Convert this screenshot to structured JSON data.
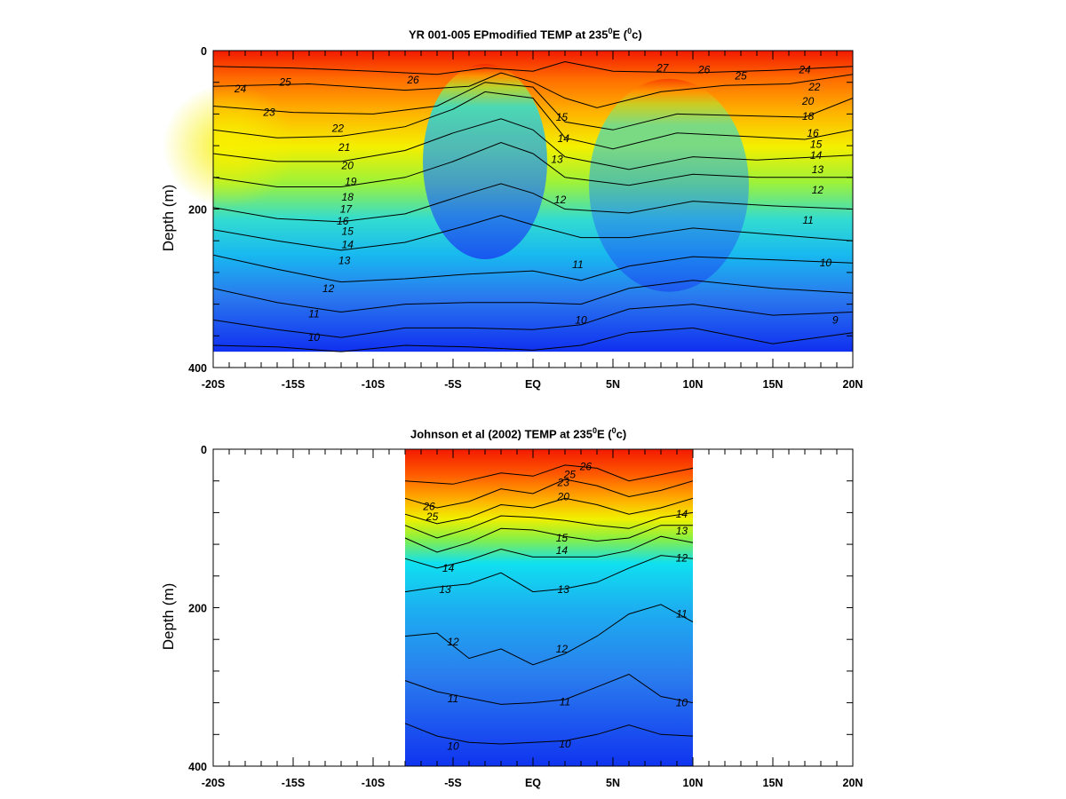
{
  "chart_data": [
    {
      "type": "heatmap",
      "title_parts": {
        "pre": "YR 001-005 EPmodified TEMP at 235",
        "sup1": "0",
        "mid": "E (",
        "sup2": "0",
        "post": "c)"
      },
      "ylabel": "Depth (m)",
      "x_ticks": [
        "-20S",
        "-15S",
        "-10S",
        "-5S",
        "EQ",
        "5N",
        "10N",
        "15N",
        "20N"
      ],
      "x_tick_values": [
        -20,
        -15,
        -10,
        -5,
        0,
        5,
        10,
        15,
        20
      ],
      "y_ticks": [
        "0",
        "200",
        "400"
      ],
      "y_tick_values": [
        0,
        200,
        400
      ],
      "xlim": [
        -20,
        20
      ],
      "ylim": [
        0,
        400
      ],
      "data_xlim": [
        -20,
        20
      ],
      "data_depth_max": 380,
      "contour_labels": [
        {
          "text": "24",
          "x": -18.3,
          "y": 48
        },
        {
          "text": "25",
          "x": -15.5,
          "y": 40
        },
        {
          "text": "26",
          "x": -7.5,
          "y": 37
        },
        {
          "text": "23",
          "x": -16.5,
          "y": 78
        },
        {
          "text": "22",
          "x": -12.2,
          "y": 98
        },
        {
          "text": "21",
          "x": -11.8,
          "y": 122
        },
        {
          "text": "20",
          "x": -11.6,
          "y": 145
        },
        {
          "text": "19",
          "x": -11.4,
          "y": 165
        },
        {
          "text": "18",
          "x": -11.6,
          "y": 185
        },
        {
          "text": "17",
          "x": -11.7,
          "y": 200
        },
        {
          "text": "16",
          "x": -11.9,
          "y": 215
        },
        {
          "text": "15",
          "x": -11.6,
          "y": 228
        },
        {
          "text": "14",
          "x": -11.6,
          "y": 245
        },
        {
          "text": "13",
          "x": -11.8,
          "y": 265
        },
        {
          "text": "12",
          "x": -12.8,
          "y": 300
        },
        {
          "text": "11",
          "x": -13.7,
          "y": 332
        },
        {
          "text": "10",
          "x": -13.7,
          "y": 362
        },
        {
          "text": "15",
          "x": 1.8,
          "y": 84
        },
        {
          "text": "14",
          "x": 1.9,
          "y": 111
        },
        {
          "text": "13",
          "x": 1.5,
          "y": 137
        },
        {
          "text": "12",
          "x": 1.7,
          "y": 188
        },
        {
          "text": "11",
          "x": 2.8,
          "y": 270
        },
        {
          "text": "10",
          "x": 3.0,
          "y": 340
        },
        {
          "text": "27",
          "x": 8.1,
          "y": 22
        },
        {
          "text": "26",
          "x": 10.7,
          "y": 24
        },
        {
          "text": "25",
          "x": 13.0,
          "y": 32
        },
        {
          "text": "24",
          "x": 17.0,
          "y": 24
        },
        {
          "text": "22",
          "x": 17.6,
          "y": 46
        },
        {
          "text": "20",
          "x": 17.2,
          "y": 64
        },
        {
          "text": "18",
          "x": 17.2,
          "y": 83
        },
        {
          "text": "16",
          "x": 17.5,
          "y": 104
        },
        {
          "text": "15",
          "x": 17.7,
          "y": 118
        },
        {
          "text": "14",
          "x": 17.7,
          "y": 132
        },
        {
          "text": "13",
          "x": 17.8,
          "y": 150
        },
        {
          "text": "12",
          "x": 17.8,
          "y": 176
        },
        {
          "text": "11",
          "x": 17.2,
          "y": 214
        },
        {
          "text": "10",
          "x": 18.3,
          "y": 268
        },
        {
          "text": "9",
          "x": 18.9,
          "y": 340
        }
      ]
    },
    {
      "type": "heatmap",
      "title_parts": {
        "pre": "Johnson et al (2002) TEMP at 235",
        "sup1": "0",
        "mid": "E (",
        "sup2": "0",
        "post": "c)"
      },
      "ylabel": "Depth (m)",
      "x_ticks": [
        "-20S",
        "-15S",
        "-10S",
        "-5S",
        "EQ",
        "5N",
        "10N",
        "15N",
        "20N"
      ],
      "x_tick_values": [
        -20,
        -15,
        -10,
        -5,
        0,
        5,
        10,
        15,
        20
      ],
      "y_ticks": [
        "0",
        "200",
        "400"
      ],
      "y_tick_values": [
        0,
        200,
        400
      ],
      "xlim": [
        -20,
        20
      ],
      "ylim": [
        0,
        400
      ],
      "data_xlim": [
        -8,
        10
      ],
      "data_depth_max": 400,
      "contour_labels": [
        {
          "text": "26",
          "x": -6.5,
          "y": 72
        },
        {
          "text": "25",
          "x": -6.3,
          "y": 85
        },
        {
          "text": "14",
          "x": -5.3,
          "y": 150
        },
        {
          "text": "13",
          "x": -5.5,
          "y": 177
        },
        {
          "text": "12",
          "x": -5.0,
          "y": 243
        },
        {
          "text": "11",
          "x": -5.0,
          "y": 315
        },
        {
          "text": "10",
          "x": -5.0,
          "y": 375
        },
        {
          "text": "25",
          "x": 2.3,
          "y": 32
        },
        {
          "text": "26",
          "x": 3.3,
          "y": 22
        },
        {
          "text": "23",
          "x": 1.9,
          "y": 42
        },
        {
          "text": "20",
          "x": 1.9,
          "y": 60
        },
        {
          "text": "15",
          "x": 1.8,
          "y": 112
        },
        {
          "text": "14",
          "x": 1.8,
          "y": 128
        },
        {
          "text": "13",
          "x": 1.9,
          "y": 177
        },
        {
          "text": "12",
          "x": 1.8,
          "y": 252
        },
        {
          "text": "11",
          "x": 2.0,
          "y": 319
        },
        {
          "text": "10",
          "x": 2.0,
          "y": 372
        },
        {
          "text": "14",
          "x": 9.3,
          "y": 82
        },
        {
          "text": "13",
          "x": 9.3,
          "y": 103
        },
        {
          "text": "12",
          "x": 9.3,
          "y": 137
        },
        {
          "text": "11",
          "x": 9.3,
          "y": 208
        },
        {
          "text": "10",
          "x": 9.3,
          "y": 320
        }
      ]
    }
  ]
}
